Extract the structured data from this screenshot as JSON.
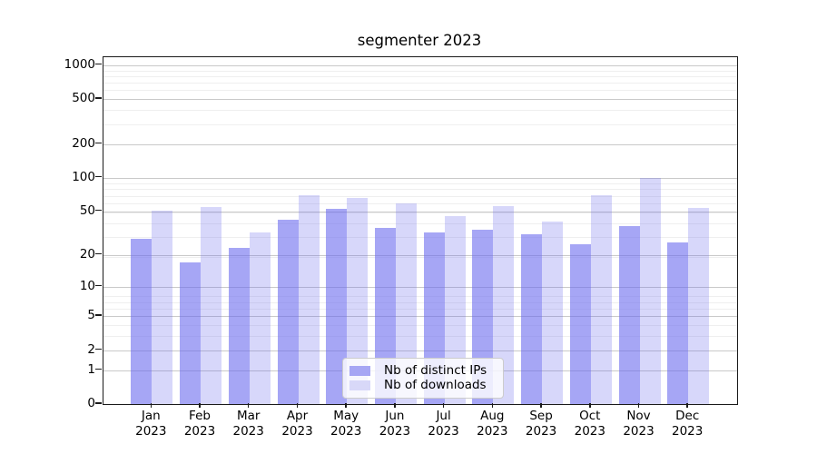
{
  "title": "segmenter 2023",
  "chart_data": {
    "type": "bar",
    "title": "segmenter 2023",
    "categories": [
      "Jan",
      "Feb",
      "Mar",
      "Apr",
      "May",
      "Jun",
      "Jul",
      "Aug",
      "Sep",
      "Oct",
      "Nov",
      "Dec"
    ],
    "year_label": "2023",
    "series": [
      {
        "name": "Nb of distinct IPs",
        "swatch_color": "#a6a6f4",
        "bar_fill": "rgba(107,107,238,0.6)",
        "values": [
          28,
          17,
          23,
          42,
          53,
          35,
          32,
          34,
          31,
          25,
          37,
          26
        ]
      },
      {
        "name": "Nb of downloads",
        "swatch_color": "#d8d8f8",
        "bar_fill": "rgba(107,107,238,0.27)",
        "values": [
          51,
          55,
          32,
          70,
          66,
          59,
          45,
          56,
          40,
          70,
          100,
          54
        ]
      }
    ],
    "y_ticks": [
      1000,
      500,
      200,
      100,
      50,
      20,
      10,
      5,
      2,
      1,
      0
    ],
    "scale": "log10(1+v)",
    "ylim": [
      0,
      1190
    ],
    "grid": true,
    "legend_position": "lower center",
    "xlabel": "",
    "ylabel": ""
  }
}
